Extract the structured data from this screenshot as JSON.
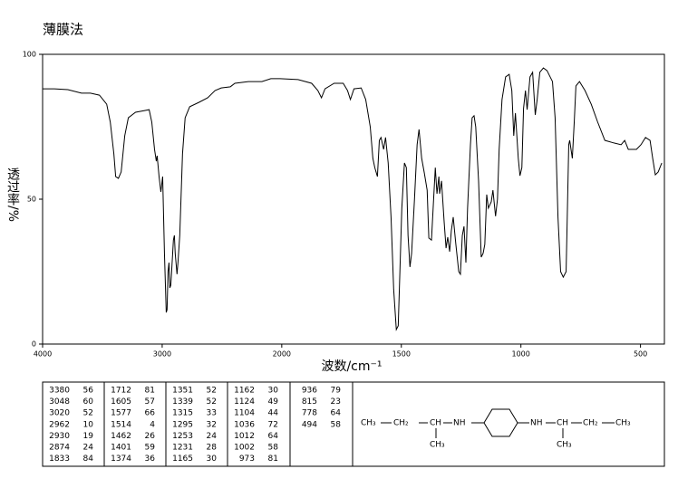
{
  "chart_data": {
    "type": "line",
    "title": "薄膜法",
    "x_label": "波数/cm⁻¹",
    "y_label": "透过率/%",
    "x": [
      4000,
      3902,
      3789,
      3675,
      3600,
      3525,
      3464,
      3434,
      3404,
      3389,
      3366,
      3343,
      3313,
      3283,
      3223,
      3147,
      3109,
      3087,
      3064,
      3049,
      3042,
      3026,
      3011,
      2996,
      2981,
      2966,
      2959,
      2951,
      2943,
      2936,
      2928,
      2921,
      2906,
      2898,
      2891,
      2876,
      2868,
      2853,
      2830,
      2808,
      2770,
      2694,
      2619,
      2558,
      2506,
      2430,
      2392,
      2279,
      2166,
      2091,
      2015,
      1932,
      1875,
      1849,
      1834,
      1819,
      1781,
      1743,
      1725,
      1713,
      1698,
      1668,
      1649,
      1630,
      1619,
      1611,
      1600,
      1592,
      1585,
      1574,
      1566,
      1555,
      1543,
      1532,
      1521,
      1513,
      1506,
      1498,
      1487,
      1479,
      1472,
      1464,
      1457,
      1445,
      1434,
      1426,
      1415,
      1404,
      1392,
      1385,
      1374,
      1366,
      1358,
      1351,
      1343,
      1340,
      1332,
      1321,
      1313,
      1306,
      1298,
      1291,
      1283,
      1272,
      1260,
      1253,
      1245,
      1238,
      1230,
      1223,
      1211,
      1204,
      1196,
      1189,
      1177,
      1166,
      1158,
      1151,
      1143,
      1136,
      1124,
      1117,
      1106,
      1098,
      1091,
      1079,
      1064,
      1049,
      1038,
      1030,
      1023,
      1011,
      1004,
      996,
      989,
      981,
      974,
      962,
      951,
      940,
      932,
      921,
      906,
      891,
      868,
      857,
      845,
      834,
      823,
      811,
      807,
      800,
      796,
      785,
      777,
      770,
      755,
      732,
      706,
      679,
      649,
      611,
      581,
      566,
      551,
      517,
      498,
      479,
      460,
      449,
      438,
      426,
      411
    ],
    "series": [
      {
        "color": "#000000",
        "values": [
          88.1,
          88.1,
          87.8,
          86.6,
          86.6,
          85.9,
          82.8,
          76.6,
          65.6,
          57.8,
          57.2,
          59.4,
          71.9,
          78.1,
          80.0,
          80.6,
          80.9,
          76.6,
          67.2,
          63.1,
          65.0,
          57.8,
          52.5,
          57.8,
          31.3,
          10.9,
          11.9,
          25.0,
          28.1,
          19.4,
          20.3,
          25.0,
          35.9,
          37.5,
          31.3,
          24.1,
          28.1,
          37.5,
          65.6,
          78.1,
          81.9,
          83.4,
          85.0,
          87.5,
          88.4,
          88.8,
          90.0,
          90.6,
          90.6,
          91.6,
          91.6,
          91.3,
          90.0,
          87.5,
          85.0,
          88.1,
          90.0,
          90.0,
          87.5,
          84.4,
          88.1,
          88.4,
          84.4,
          75.0,
          64.1,
          60.9,
          57.8,
          70.3,
          71.3,
          67.2,
          71.3,
          62.5,
          43.8,
          18.8,
          5.0,
          6.3,
          25.0,
          46.9,
          62.5,
          60.9,
          37.5,
          26.6,
          31.3,
          50.0,
          68.8,
          74.1,
          64.1,
          59.1,
          53.1,
          36.6,
          35.9,
          48.4,
          60.9,
          51.9,
          57.8,
          51.9,
          56.3,
          42.2,
          33.1,
          36.9,
          31.9,
          39.1,
          43.8,
          34.4,
          25.0,
          24.1,
          37.5,
          40.6,
          28.1,
          46.9,
          68.8,
          78.1,
          78.8,
          75.0,
          56.3,
          30.0,
          31.3,
          34.4,
          51.6,
          46.9,
          49.1,
          53.1,
          44.1,
          50.0,
          67.2,
          84.4,
          92.2,
          93.1,
          87.5,
          71.9,
          79.7,
          64.1,
          58.1,
          60.9,
          81.3,
          87.5,
          80.9,
          92.2,
          93.8,
          79.1,
          84.4,
          93.8,
          95.3,
          94.4,
          90.6,
          78.1,
          43.8,
          25.0,
          23.1,
          25.0,
          40.6,
          68.8,
          70.3,
          64.1,
          76.6,
          89.1,
          90.6,
          87.5,
          82.8,
          76.6,
          70.3,
          69.4,
          68.8,
          70.3,
          67.2,
          67.2,
          68.8,
          71.3,
          70.3,
          64.1,
          58.4,
          59.4,
          62.5
        ]
      }
    ],
    "xlim": [
      4000,
      400
    ],
    "ylim": [
      0,
      100
    ],
    "x_scale_break": 2000,
    "xticks": [
      4000,
      3000,
      2000,
      1500,
      1000,
      500
    ],
    "yticks": [
      0,
      50,
      100
    ]
  },
  "peak_table": [
    [
      [
        3380,
        56
      ],
      [
        3048,
        60
      ],
      [
        3020,
        52
      ],
      [
        2962,
        10
      ],
      [
        2930,
        19
      ],
      [
        2874,
        24
      ],
      [
        1833,
        84
      ]
    ],
    [
      [
        1712,
        81
      ],
      [
        1605,
        57
      ],
      [
        1577,
        66
      ],
      [
        1514,
        4
      ],
      [
        1462,
        26
      ],
      [
        1401,
        59
      ],
      [
        1374,
        36
      ]
    ],
    [
      [
        1351,
        52
      ],
      [
        1339,
        52
      ],
      [
        1315,
        33
      ],
      [
        1295,
        32
      ],
      [
        1253,
        24
      ],
      [
        1231,
        28
      ],
      [
        1165,
        30
      ]
    ],
    [
      [
        1162,
        30
      ],
      [
        1124,
        49
      ],
      [
        1104,
        44
      ],
      [
        1036,
        72
      ],
      [
        1012,
        64
      ],
      [
        1002,
        58
      ],
      [
        973,
        81
      ]
    ],
    [
      [
        936,
        79
      ],
      [
        815,
        23
      ],
      [
        778,
        64
      ],
      [
        494,
        58
      ]
    ]
  ],
  "structure": {
    "labels": [
      "CH₃",
      "CH₂",
      "CH",
      "NH",
      "NH",
      "CH",
      "CH₂",
      "CH₃",
      "CH₃",
      "CH₃"
    ]
  }
}
